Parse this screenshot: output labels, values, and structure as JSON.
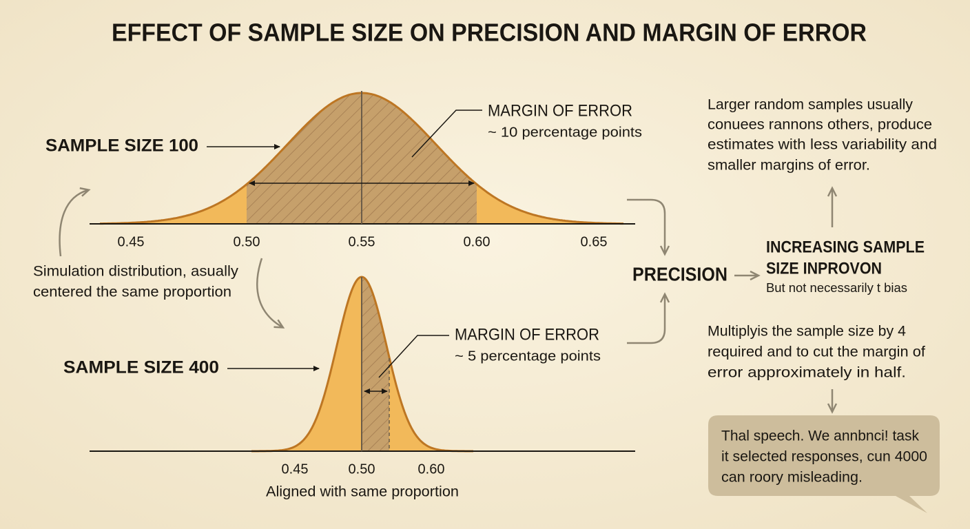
{
  "title": "EFFECT OF SAMPLE SIZE ON PRECISION AND MARGIN OF ERROR",
  "top_panel": {
    "label": "SAMPLE SIZE 100",
    "annotation_title": "MARGIN OF ERROR",
    "annotation_text": "~ 10 percentage points",
    "axis_ticks": [
      "0.45",
      "0.50",
      "0.55",
      "0.60",
      "0.65"
    ]
  },
  "side_note": [
    "Simulation distribution, asually",
    "centered the same proportion"
  ],
  "bottom_panel": {
    "label": "SAMPLE SIZE 400",
    "annotation_title": "MARGIN OF ERROR",
    "annotation_text": "~ 5 percentage points",
    "axis_ticks": [
      "0.45",
      "0.50",
      "0.60"
    ],
    "caption": "Aligned with same proportion"
  },
  "flow": {
    "precision": "PRECISION",
    "result_lines": [
      "INCREASING SAMPLE",
      "SIZE INPROVON"
    ],
    "result_note": "But not necessarily t bias"
  },
  "right_notes": {
    "top": [
      "Larger random samples usually",
      "conuees rannons others, produce",
      "estimates with less variability and",
      "smaller margins of error."
    ],
    "middle": [
      "Multiplyis the sample size by 4",
      "required and to cut the margin of",
      "error approximately in half."
    ]
  },
  "speech_bubble": [
    "Thal speech. We annbnci! task",
    "it selected responses, cun 4000",
    "can roory misleading."
  ]
}
